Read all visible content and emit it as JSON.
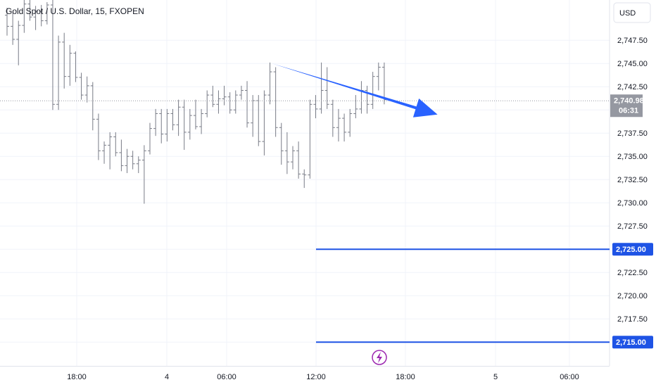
{
  "chart_data": {
    "type": "ohlc",
    "title": "Gold Spot / U.S. Dollar, 15, FXOPEN",
    "currency": "USD",
    "y_ticks": [
      "2,747.50",
      "2,745.00",
      "2,742.50",
      "2,740.00",
      "2,737.50",
      "2,735.00",
      "2,732.50",
      "2,730.00",
      "2,727.50",
      "2,725.00",
      "2,722.50",
      "2,720.00",
      "2,717.50",
      "2,715.00"
    ],
    "y_tick_values": [
      2747.5,
      2745,
      2742.5,
      2740,
      2737.5,
      2735,
      2732.5,
      2730,
      2727.5,
      2725,
      2722.5,
      2720,
      2717.5,
      2715
    ],
    "x_ticks": [
      "18:00",
      "4",
      "06:00",
      "12:00",
      "18:00",
      "5",
      "06:00"
    ],
    "last_price": "2,740.98",
    "countdown": "06:31",
    "levels": [
      {
        "value": 2725.0,
        "label": "2,725.00"
      },
      {
        "value": 2715.0,
        "label": "2,715.00"
      }
    ],
    "arrow": {
      "from": [
        46,
        2745.0
      ],
      "to": [
        55,
        2739.5
      ]
    },
    "ylim": [
      2712.3,
      2750.5
    ],
    "bars": [
      [
        2750.2,
        2751.0,
        2748.0,
        2749.0
      ],
      [
        2749.0,
        2750.5,
        2747.0,
        2747.6
      ],
      [
        2747.6,
        2749.6,
        2744.8,
        2749.1
      ],
      [
        2749.1,
        2752.0,
        2748.3,
        2751.4
      ],
      [
        2751.4,
        2752.3,
        2749.6,
        2750.0
      ],
      [
        2750.0,
        2751.2,
        2748.6,
        2750.6
      ],
      [
        2750.6,
        2751.3,
        2749.0,
        2749.6
      ],
      [
        2749.6,
        2751.6,
        2749.2,
        2751.3
      ],
      [
        2751.3,
        2752.4,
        2740.0,
        2740.6
      ],
      [
        2740.6,
        2748.0,
        2740.0,
        2747.3
      ],
      [
        2747.3,
        2748.3,
        2742.3,
        2743.6
      ],
      [
        2743.6,
        2747.0,
        2742.6,
        2746.1
      ],
      [
        2746.1,
        2746.3,
        2743.0,
        2743.5
      ],
      [
        2743.5,
        2744.0,
        2741.1,
        2741.6
      ],
      [
        2741.6,
        2743.6,
        2740.8,
        2742.6
      ],
      [
        2742.6,
        2743.0,
        2737.8,
        2739.0
      ],
      [
        2739.0,
        2739.6,
        2734.6,
        2735.6
      ],
      [
        2735.6,
        2736.6,
        2734.2,
        2736.2
      ],
      [
        2736.2,
        2737.6,
        2733.6,
        2737.1
      ],
      [
        2737.1,
        2737.6,
        2735.0,
        2735.4
      ],
      [
        2735.4,
        2736.8,
        2733.4,
        2734.0
      ],
      [
        2734.0,
        2735.8,
        2733.2,
        2735.0
      ],
      [
        2735.0,
        2735.6,
        2733.6,
        2734.2
      ],
      [
        2734.2,
        2735.0,
        2733.2,
        2734.6
      ],
      [
        2734.6,
        2736.2,
        2729.9,
        2735.6
      ],
      [
        2735.6,
        2738.6,
        2735.2,
        2738.0
      ],
      [
        2738.0,
        2740.1,
        2737.2,
        2739.6
      ],
      [
        2739.6,
        2740.1,
        2736.4,
        2737.4
      ],
      [
        2737.4,
        2740.1,
        2736.6,
        2739.6
      ],
      [
        2739.6,
        2740.1,
        2737.8,
        2738.4
      ],
      [
        2738.4,
        2741.1,
        2737.2,
        2740.3
      ],
      [
        2740.3,
        2741.1,
        2735.7,
        2737.6
      ],
      [
        2737.6,
        2740.1,
        2736.8,
        2739.4
      ],
      [
        2739.4,
        2741.1,
        2737.9,
        2738.2
      ],
      [
        2738.2,
        2740.1,
        2737.4,
        2739.6
      ],
      [
        2739.6,
        2742.1,
        2739.2,
        2741.6
      ],
      [
        2741.6,
        2742.6,
        2740.3,
        2740.6
      ],
      [
        2740.6,
        2742.1,
        2739.6,
        2741.2
      ],
      [
        2741.2,
        2742.6,
        2740.5,
        2741.4
      ],
      [
        2741.4,
        2741.9,
        2739.6,
        2740.0
      ],
      [
        2740.0,
        2742.1,
        2739.6,
        2741.6
      ],
      [
        2741.6,
        2742.6,
        2741.1,
        2742.1
      ],
      [
        2742.1,
        2743.1,
        2738.1,
        2738.6
      ],
      [
        2738.6,
        2741.6,
        2737.1,
        2741.0
      ],
      [
        2741.0,
        2741.6,
        2736.1,
        2736.6
      ],
      [
        2736.6,
        2742.1,
        2735.1,
        2741.6
      ],
      [
        2741.6,
        2745.1,
        2740.6,
        2744.1
      ],
      [
        2744.1,
        2744.6,
        2737.1,
        2738.1
      ],
      [
        2738.1,
        2738.6,
        2734.1,
        2735.6
      ],
      [
        2735.6,
        2737.6,
        2733.1,
        2734.4
      ],
      [
        2734.4,
        2736.1,
        2733.6,
        2735.6
      ],
      [
        2735.6,
        2736.6,
        2732.6,
        2733.1
      ],
      [
        2733.1,
        2733.6,
        2731.6,
        2733.0
      ],
      [
        2733.0,
        2741.1,
        2732.6,
        2740.6
      ],
      [
        2740.6,
        2741.6,
        2739.1,
        2740.1
      ],
      [
        2740.1,
        2745.1,
        2739.6,
        2742.1
      ],
      [
        2742.1,
        2744.6,
        2740.1,
        2740.6
      ],
      [
        2740.6,
        2741.1,
        2737.1,
        2738.1
      ],
      [
        2738.1,
        2740.1,
        2736.6,
        2739.1
      ],
      [
        2739.1,
        2739.6,
        2736.6,
        2737.6
      ],
      [
        2737.6,
        2740.1,
        2737.1,
        2739.6
      ],
      [
        2739.6,
        2741.6,
        2739.1,
        2740.1
      ],
      [
        2740.1,
        2743.1,
        2739.6,
        2742.1
      ],
      [
        2742.1,
        2742.6,
        2739.6,
        2740.6
      ],
      [
        2740.6,
        2744.1,
        2740.1,
        2743.6
      ],
      [
        2743.6,
        2745.1,
        2742.1,
        2744.6
      ],
      [
        2744.6,
        2745.1,
        2740.6,
        2741.1
      ]
    ]
  }
}
